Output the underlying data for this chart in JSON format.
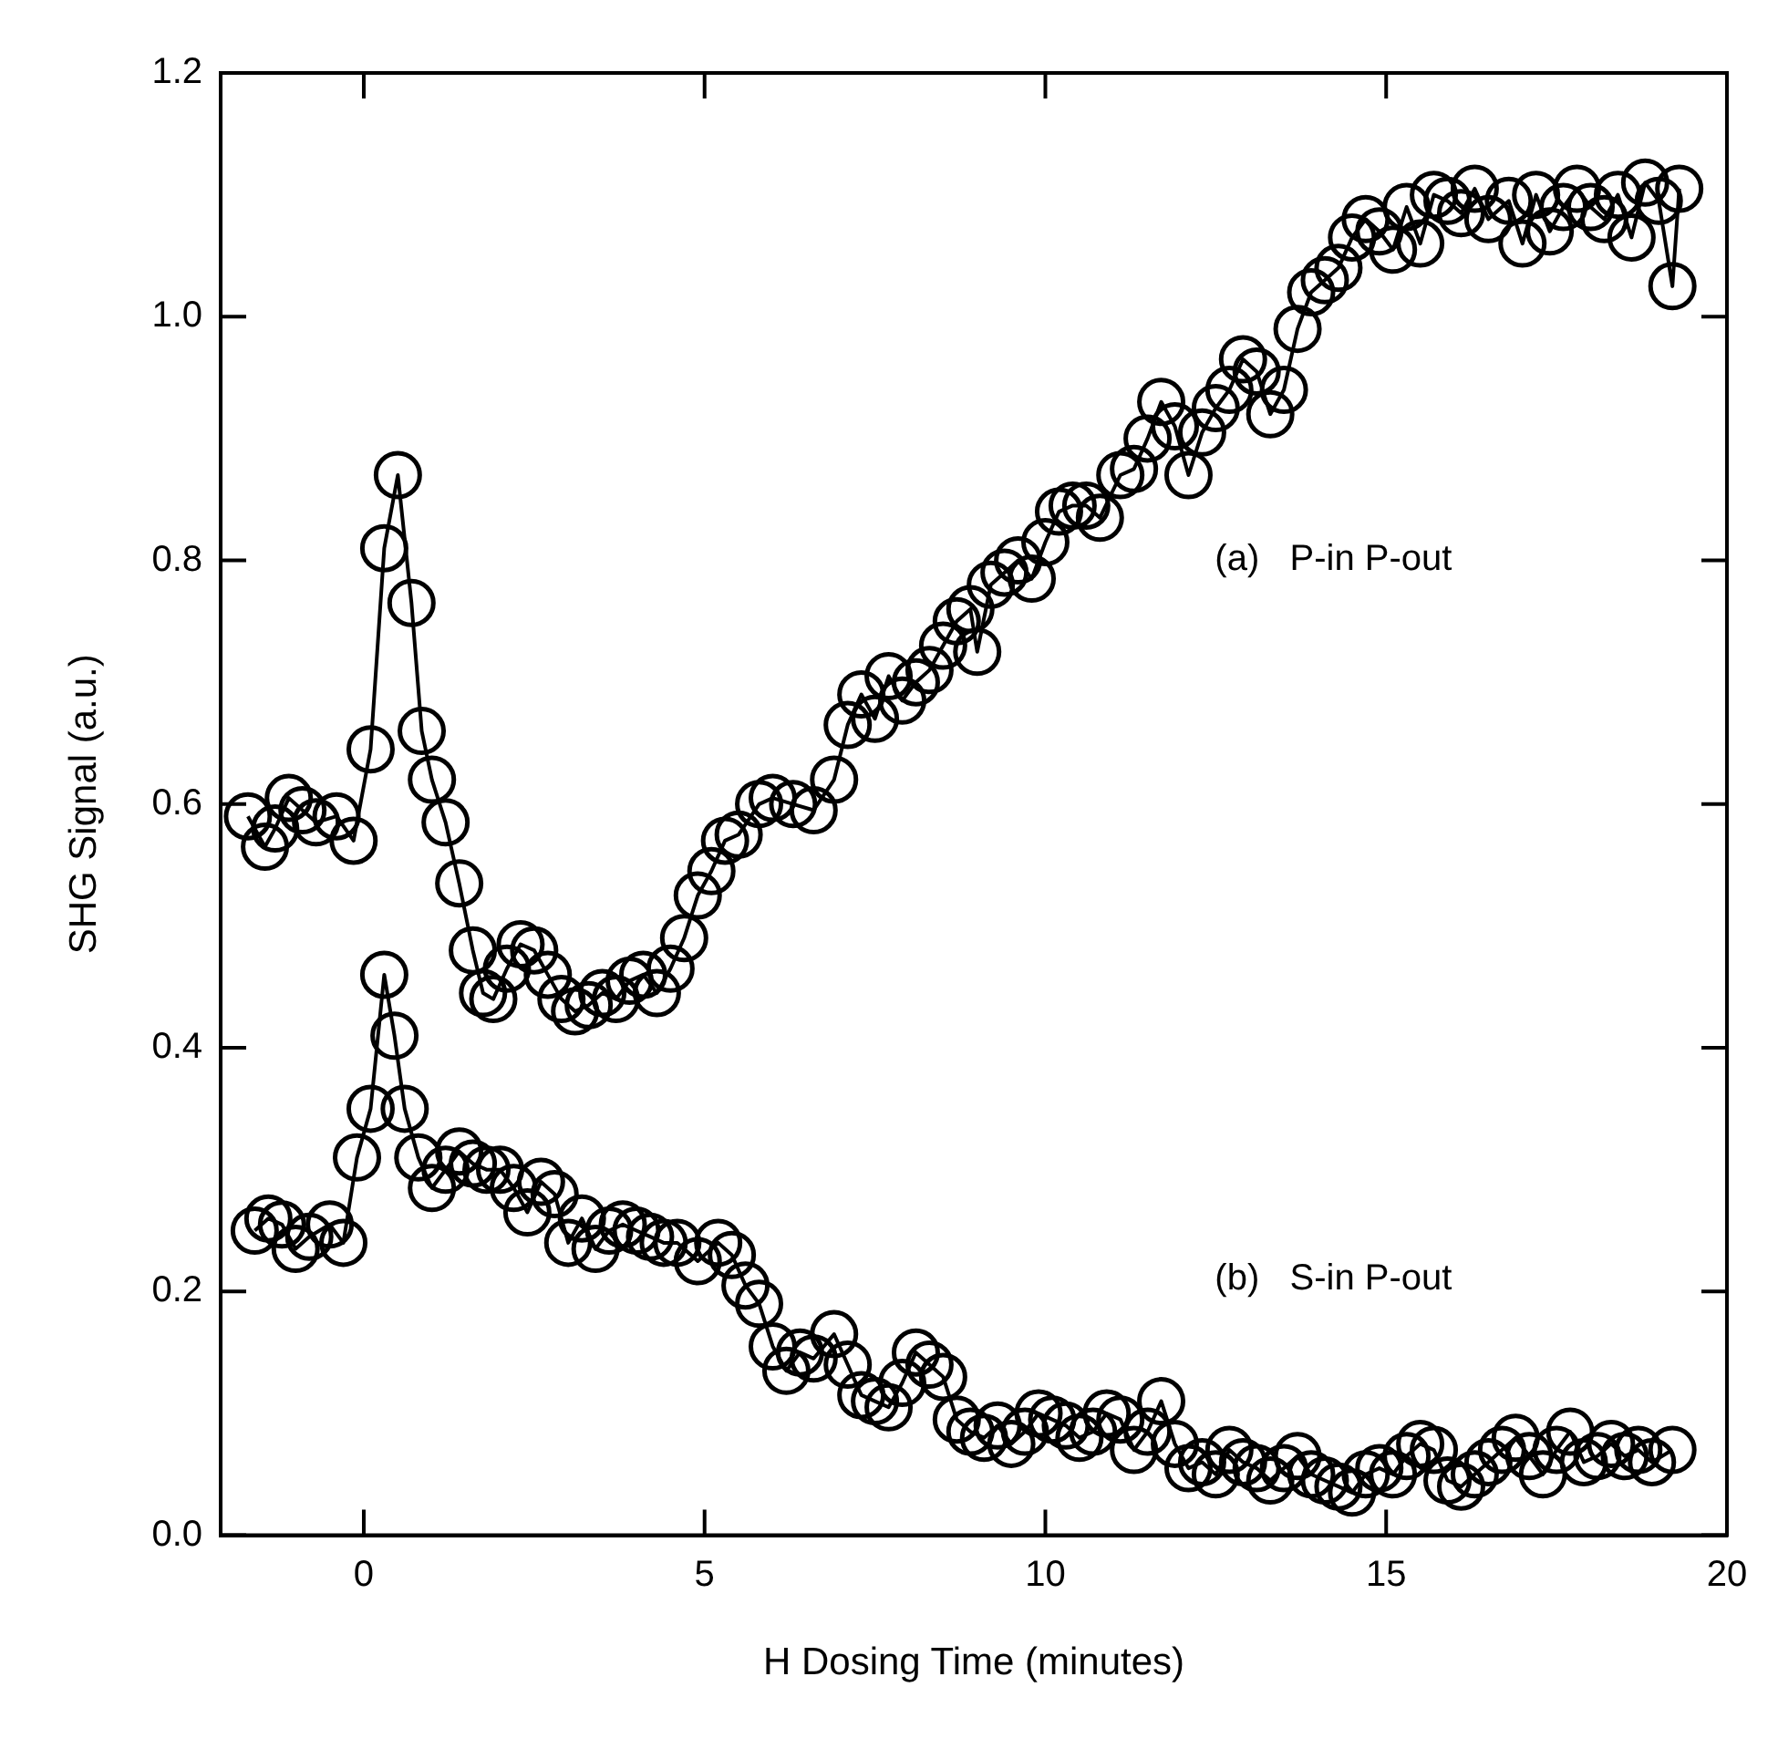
{
  "chart_data": {
    "type": "line",
    "xlabel": "H Dosing Time (minutes)",
    "ylabel": "SHG Signal (a.u.)",
    "xlim": [
      -2.1,
      20
    ],
    "xticks": [
      0,
      5,
      10,
      15,
      20
    ],
    "ylim": [
      0,
      1.2
    ],
    "yticks": [
      {
        "value": 0,
        "label": "0.0"
      },
      0.2,
      0.4,
      0.6,
      0.8,
      {
        "value": 1,
        "label": "1.0"
      },
      1.2
    ],
    "marker": "circle",
    "line_style": "solid",
    "legend": false,
    "annotations": [
      "(a)   P-in P-out",
      "(b)   S-in P-out"
    ],
    "series": [
      {
        "color": "#000000",
        "x": [
          -1.7,
          -1.45,
          -1.3,
          -1.1,
          -0.9,
          -0.7,
          -0.4,
          -0.15,
          0.1,
          0.3,
          0.5,
          0.7,
          0.85,
          1.0,
          1.2,
          1.4,
          1.6,
          1.75,
          1.9,
          2.1,
          2.3,
          2.5,
          2.7,
          2.9,
          3.1,
          3.3,
          3.5,
          3.7,
          3.9,
          4.1,
          4.3,
          4.5,
          4.7,
          4.9,
          5.1,
          5.3,
          5.5,
          5.8,
          6.0,
          6.3,
          6.6,
          6.9,
          7.1,
          7.3,
          7.5,
          7.7,
          7.9,
          8.1,
          8.3,
          8.5,
          8.7,
          8.9,
          9.0,
          9.2,
          9.4,
          9.6,
          9.8,
          10.0,
          10.2,
          10.4,
          10.6,
          10.8,
          11.1,
          11.3,
          11.5,
          11.7,
          11.9,
          12.1,
          12.3,
          12.5,
          12.7,
          12.9,
          13.1,
          13.3,
          13.5,
          13.7,
          13.9,
          14.1,
          14.3,
          14.5,
          14.7,
          14.9,
          15.1,
          15.3,
          15.5,
          15.7,
          15.9,
          16.1,
          16.3,
          16.5,
          16.8,
          17.0,
          17.2,
          17.4,
          17.6,
          17.8,
          18.0,
          18.2,
          18.4,
          18.6,
          18.8,
          19.0,
          19.2,
          19.3
        ],
        "values": [
          0.59,
          0.565,
          0.58,
          0.605,
          0.595,
          0.585,
          0.59,
          0.57,
          0.645,
          0.81,
          0.87,
          0.765,
          0.66,
          0.62,
          0.585,
          0.535,
          0.48,
          0.445,
          0.44,
          0.465,
          0.485,
          0.48,
          0.46,
          0.44,
          0.43,
          0.435,
          0.445,
          0.44,
          0.455,
          0.46,
          0.445,
          0.465,
          0.49,
          0.525,
          0.545,
          0.57,
          0.575,
          0.6,
          0.605,
          0.6,
          0.595,
          0.62,
          0.665,
          0.69,
          0.67,
          0.705,
          0.685,
          0.7,
          0.71,
          0.73,
          0.75,
          0.76,
          0.725,
          0.78,
          0.79,
          0.8,
          0.785,
          0.815,
          0.84,
          0.845,
          0.845,
          0.835,
          0.87,
          0.875,
          0.9,
          0.93,
          0.91,
          0.87,
          0.905,
          0.925,
          0.94,
          0.965,
          0.955,
          0.92,
          0.94,
          0.99,
          1.02,
          1.03,
          1.04,
          1.065,
          1.08,
          1.07,
          1.055,
          1.09,
          1.06,
          1.1,
          1.095,
          1.085,
          1.105,
          1.08,
          1.095,
          1.06,
          1.1,
          1.07,
          1.09,
          1.105,
          1.09,
          1.08,
          1.1,
          1.065,
          1.11,
          1.095,
          1.025,
          1.105
        ]
      },
      {
        "color": "#000000",
        "x": [
          -1.6,
          -1.4,
          -1.2,
          -1.0,
          -0.8,
          -0.5,
          -0.3,
          -0.1,
          0.1,
          0.3,
          0.45,
          0.6,
          0.8,
          1.0,
          1.2,
          1.4,
          1.6,
          1.8,
          2.0,
          2.2,
          2.4,
          2.6,
          2.8,
          3.0,
          3.2,
          3.4,
          3.6,
          3.8,
          4.0,
          4.2,
          4.4,
          4.6,
          4.9,
          5.2,
          5.4,
          5.6,
          5.8,
          6.0,
          6.2,
          6.4,
          6.6,
          6.9,
          7.1,
          7.3,
          7.5,
          7.7,
          7.9,
          8.1,
          8.3,
          8.5,
          8.7,
          8.9,
          9.1,
          9.3,
          9.5,
          9.7,
          9.9,
          10.1,
          10.3,
          10.5,
          10.7,
          10.9,
          11.1,
          11.3,
          11.5,
          11.7,
          11.9,
          12.1,
          12.3,
          12.5,
          12.7,
          12.9,
          13.1,
          13.3,
          13.5,
          13.7,
          13.9,
          14.1,
          14.3,
          14.5,
          14.7,
          14.9,
          15.1,
          15.3,
          15.5,
          15.7,
          15.9,
          16.1,
          16.3,
          16.5,
          16.7,
          16.9,
          17.1,
          17.3,
          17.5,
          17.7,
          17.9,
          18.1,
          18.3,
          18.5,
          18.7,
          18.9,
          19.2
        ],
        "values": [
          0.25,
          0.26,
          0.255,
          0.235,
          0.245,
          0.255,
          0.24,
          0.31,
          0.35,
          0.46,
          0.41,
          0.35,
          0.31,
          0.285,
          0.3,
          0.315,
          0.305,
          0.3,
          0.3,
          0.285,
          0.265,
          0.29,
          0.28,
          0.24,
          0.26,
          0.235,
          0.25,
          0.255,
          0.25,
          0.245,
          0.24,
          0.24,
          0.225,
          0.24,
          0.23,
          0.205,
          0.19,
          0.155,
          0.135,
          0.15,
          0.145,
          0.165,
          0.14,
          0.115,
          0.11,
          0.105,
          0.125,
          0.15,
          0.14,
          0.13,
          0.095,
          0.085,
          0.08,
          0.09,
          0.075,
          0.085,
          0.1,
          0.095,
          0.09,
          0.08,
          0.085,
          0.1,
          0.095,
          0.07,
          0.085,
          0.11,
          0.075,
          0.055,
          0.06,
          0.05,
          0.07,
          0.06,
          0.055,
          0.045,
          0.055,
          0.065,
          0.05,
          0.045,
          0.04,
          0.035,
          0.05,
          0.055,
          0.05,
          0.065,
          0.075,
          0.07,
          0.045,
          0.04,
          0.05,
          0.06,
          0.07,
          0.08,
          0.065,
          0.05,
          0.07,
          0.085,
          0.06,
          0.065,
          0.075,
          0.065,
          0.07,
          0.06,
          0.07
        ]
      }
    ]
  }
}
